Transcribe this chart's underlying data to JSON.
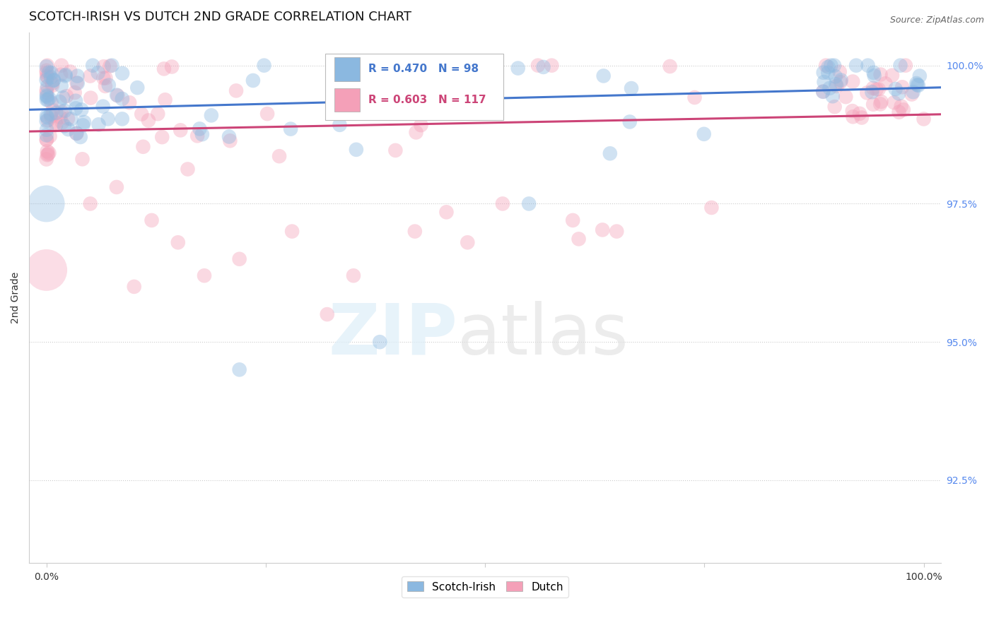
{
  "title": "SCOTCH-IRISH VS DUTCH 2ND GRADE CORRELATION CHART",
  "ylabel": "2nd Grade",
  "source_text": "Source: ZipAtlas.com",
  "scotch_irish_color": "#8BB8E0",
  "dutch_color": "#F4A0B8",
  "scotch_irish_line_color": "#4477CC",
  "dutch_line_color": "#CC4477",
  "scotch_irish_R": 0.47,
  "scotch_irish_N": 98,
  "dutch_R": 0.603,
  "dutch_N": 117,
  "background_color": "#ffffff",
  "grid_color": "#cccccc",
  "title_fontsize": 13,
  "axis_label_fontsize": 10,
  "tick_fontsize": 10,
  "marker_size": 220,
  "marker_alpha": 0.4,
  "line_width": 2.2,
  "legend_fontsize": 11,
  "right_y_color": "#5588EE",
  "watermark_zip_color": "#d8eaf8",
  "watermark_atlas_color": "#d8d8d8"
}
